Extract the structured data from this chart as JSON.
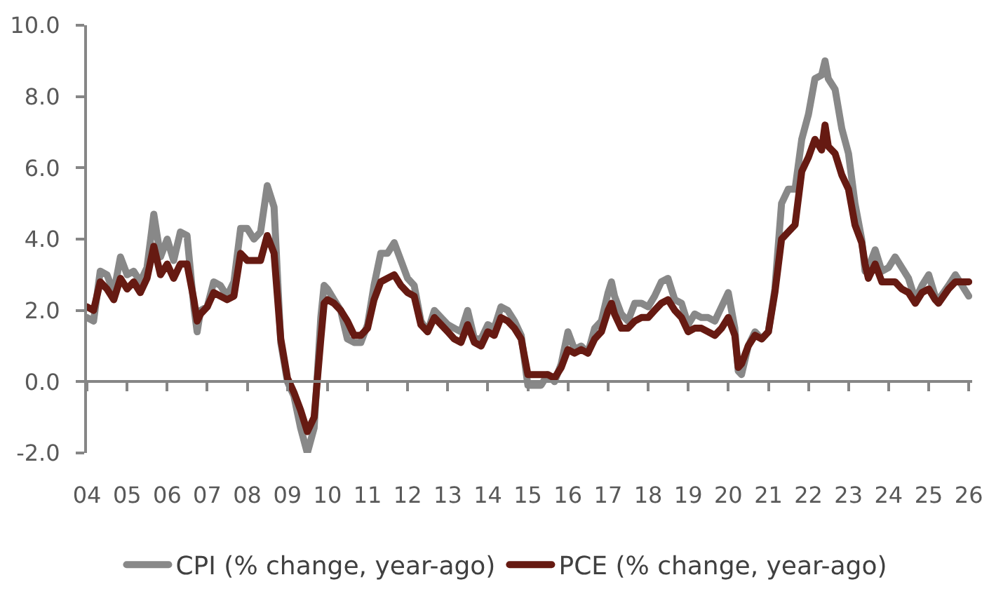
{
  "chart_data": {
    "type": "line",
    "x": [
      "2004-01",
      "2004-03",
      "2004-05",
      "2004-07",
      "2004-09",
      "2004-11",
      "2005-01",
      "2005-03",
      "2005-05",
      "2005-07",
      "2005-09",
      "2005-11",
      "2006-01",
      "2006-03",
      "2006-05",
      "2006-07",
      "2006-09",
      "2006-10",
      "2006-11",
      "2007-01",
      "2007-03",
      "2007-05",
      "2007-07",
      "2007-09",
      "2007-11",
      "2008-01",
      "2008-03",
      "2008-05",
      "2008-07",
      "2008-09",
      "2008-11",
      "2009-01",
      "2009-03",
      "2009-05",
      "2009-07",
      "2009-09",
      "2009-11",
      "2009-12",
      "2010-01",
      "2010-03",
      "2010-05",
      "2010-07",
      "2010-09",
      "2010-11",
      "2011-01",
      "2011-03",
      "2011-05",
      "2011-07",
      "2011-09",
      "2011-11",
      "2012-01",
      "2012-03",
      "2012-05",
      "2012-07",
      "2012-09",
      "2012-11",
      "2013-01",
      "2013-03",
      "2013-05",
      "2013-07",
      "2013-09",
      "2013-11",
      "2014-01",
      "2014-03",
      "2014-05",
      "2014-07",
      "2014-09",
      "2014-11",
      "2015-01",
      "2015-03",
      "2015-05",
      "2015-07",
      "2015-09",
      "2015-11",
      "2016-01",
      "2016-03",
      "2016-05",
      "2016-07",
      "2016-09",
      "2016-11",
      "2017-01",
      "2017-02",
      "2017-03",
      "2017-05",
      "2017-07",
      "2017-09",
      "2017-11",
      "2018-01",
      "2018-03",
      "2018-05",
      "2018-07",
      "2018-09",
      "2018-11",
      "2019-01",
      "2019-03",
      "2019-05",
      "2019-07",
      "2019-09",
      "2019-11",
      "2020-01",
      "2020-03",
      "2020-04",
      "2020-05",
      "2020-07",
      "2020-09",
      "2020-11",
      "2021-01",
      "2021-03",
      "2021-05",
      "2021-07",
      "2021-09",
      "2021-11",
      "2022-01",
      "2022-03",
      "2022-05",
      "2022-06",
      "2022-07",
      "2022-09",
      "2022-11",
      "2023-01",
      "2023-03",
      "2023-05",
      "2023-06",
      "2023-07",
      "2023-09",
      "2023-11",
      "2024-01",
      "2024-03",
      "2024-05",
      "2024-07",
      "2024-09",
      "2024-11",
      "2025-01",
      "2025-03",
      "2025-04",
      "2025-07",
      "2025-09",
      "2025-11",
      "2026-01"
    ],
    "series": [
      {
        "name": "CPI (% change, year-ago)",
        "color": "#888888",
        "values": [
          1.8,
          1.7,
          3.1,
          3.0,
          2.5,
          3.5,
          3.0,
          3.1,
          2.8,
          3.2,
          4.7,
          3.5,
          4.0,
          3.4,
          4.2,
          4.1,
          2.1,
          1.4,
          2.0,
          2.1,
          2.8,
          2.7,
          2.4,
          2.8,
          4.3,
          4.3,
          4.0,
          4.2,
          5.5,
          4.9,
          1.1,
          0.0,
          -0.4,
          -1.3,
          -2.0,
          -1.3,
          1.8,
          2.7,
          2.6,
          2.3,
          2.0,
          1.2,
          1.1,
          1.1,
          1.6,
          2.7,
          3.6,
          3.6,
          3.9,
          3.4,
          2.9,
          2.7,
          1.7,
          1.4,
          2.0,
          1.8,
          1.6,
          1.5,
          1.4,
          2.0,
          1.2,
          1.2,
          1.6,
          1.5,
          2.1,
          2.0,
          1.7,
          1.3,
          -0.1,
          -0.1,
          -0.1,
          0.2,
          0.0,
          0.5,
          1.4,
          0.9,
          1.0,
          0.8,
          1.5,
          1.7,
          2.5,
          2.8,
          2.4,
          1.9,
          1.7,
          2.2,
          2.2,
          2.1,
          2.4,
          2.8,
          2.9,
          2.3,
          2.2,
          1.6,
          1.9,
          1.8,
          1.8,
          1.7,
          2.1,
          2.5,
          1.5,
          0.3,
          0.2,
          1.0,
          1.4,
          1.2,
          1.4,
          2.6,
          5.0,
          5.4,
          5.4,
          6.8,
          7.5,
          8.5,
          8.6,
          9.0,
          8.5,
          8.2,
          7.1,
          6.4,
          5.0,
          4.0,
          3.1,
          3.2,
          3.7,
          3.1,
          3.2,
          3.5,
          3.2,
          2.9,
          2.3,
          2.7,
          3.0,
          2.4,
          2.3,
          2.7,
          3.0,
          2.7,
          2.4
        ]
      },
      {
        "name": "PCE (% change, year-ago)",
        "color": "#661a12",
        "values": [
          2.1,
          2.0,
          2.8,
          2.6,
          2.3,
          2.9,
          2.6,
          2.8,
          2.5,
          2.9,
          3.8,
          3.0,
          3.3,
          2.9,
          3.3,
          3.3,
          2.3,
          1.7,
          1.9,
          2.1,
          2.5,
          2.4,
          2.3,
          2.4,
          3.6,
          3.4,
          3.4,
          3.4,
          4.1,
          3.6,
          1.2,
          0.1,
          -0.3,
          -0.8,
          -1.4,
          -1.0,
          1.2,
          2.2,
          2.3,
          2.2,
          2.0,
          1.7,
          1.3,
          1.3,
          1.5,
          2.3,
          2.8,
          2.9,
          3.0,
          2.7,
          2.5,
          2.4,
          1.6,
          1.4,
          1.8,
          1.6,
          1.4,
          1.2,
          1.1,
          1.6,
          1.1,
          1.0,
          1.4,
          1.3,
          1.8,
          1.7,
          1.5,
          1.2,
          0.2,
          0.2,
          0.2,
          0.2,
          0.1,
          0.4,
          0.9,
          0.8,
          0.9,
          0.8,
          1.2,
          1.4,
          2.0,
          2.2,
          1.9,
          1.5,
          1.5,
          1.7,
          1.8,
          1.8,
          2.0,
          2.2,
          2.3,
          2.0,
          1.8,
          1.4,
          1.5,
          1.5,
          1.4,
          1.3,
          1.5,
          1.8,
          1.3,
          0.4,
          0.5,
          1.0,
          1.3,
          1.2,
          1.4,
          2.5,
          4.0,
          4.2,
          4.4,
          5.9,
          6.3,
          6.8,
          6.5,
          7.2,
          6.6,
          6.4,
          5.8,
          5.4,
          4.4,
          3.9,
          3.3,
          2.9,
          3.3,
          2.8,
          2.8,
          2.8,
          2.6,
          2.5,
          2.2,
          2.5,
          2.6,
          2.3,
          2.2,
          2.6,
          2.8,
          2.8,
          2.8
        ]
      }
    ],
    "xlim": [
      "2004-01",
      "2026-02"
    ],
    "xticks": [
      {
        "value": "2004-01",
        "label": "04"
      },
      {
        "value": "2005-01",
        "label": "05"
      },
      {
        "value": "2006-01",
        "label": "06"
      },
      {
        "value": "2007-01",
        "label": "07"
      },
      {
        "value": "2008-01",
        "label": "08"
      },
      {
        "value": "2009-01",
        "label": "09"
      },
      {
        "value": "2010-01",
        "label": "10"
      },
      {
        "value": "2011-01",
        "label": "11"
      },
      {
        "value": "2012-01",
        "label": "12"
      },
      {
        "value": "2013-01",
        "label": "13"
      },
      {
        "value": "2014-01",
        "label": "14"
      },
      {
        "value": "2015-01",
        "label": "15"
      },
      {
        "value": "2016-01",
        "label": "16"
      },
      {
        "value": "2017-01",
        "label": "17"
      },
      {
        "value": "2018-01",
        "label": "18"
      },
      {
        "value": "2019-01",
        "label": "19"
      },
      {
        "value": "2020-01",
        "label": "20"
      },
      {
        "value": "2021-01",
        "label": "21"
      },
      {
        "value": "2022-01",
        "label": "22"
      },
      {
        "value": "2023-01",
        "label": "23"
      },
      {
        "value": "2024-01",
        "label": "24"
      },
      {
        "value": "2025-01",
        "label": "25"
      },
      {
        "value": "2026-01",
        "label": "26"
      }
    ],
    "ylim": [
      -2,
      10
    ],
    "yticks": [
      {
        "value": -2,
        "label": "-2.0"
      },
      {
        "value": 0,
        "label": "0.0"
      },
      {
        "value": 2,
        "label": "2.0"
      },
      {
        "value": 4,
        "label": "4.0"
      },
      {
        "value": 6,
        "label": "6.0"
      },
      {
        "value": 8,
        "label": "8.0"
      },
      {
        "value": 10,
        "label": "10.0"
      }
    ],
    "legend": "bottom"
  }
}
